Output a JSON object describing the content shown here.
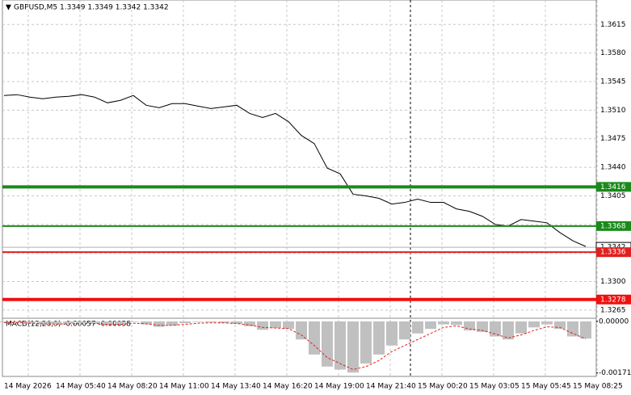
{
  "chart_data": {
    "type": "line",
    "title": "GBPUSD,M5  1.3349 1.3349 1.3342 1.3342",
    "categories": [
      "14 May 2026",
      null,
      null,
      null,
      "14 May 05:40",
      null,
      null,
      null,
      "14 May 08:20",
      null,
      null,
      null,
      "14 May 11:00",
      null,
      null,
      null,
      "14 May 13:40",
      null,
      null,
      null,
      "14 May 16:20",
      null,
      null,
      null,
      "14 May 19:00",
      null,
      null,
      null,
      "14 May 21:40",
      null,
      null,
      null,
      "15 May 00:20",
      null,
      null,
      null,
      "15 May 03:05",
      null,
      null,
      null,
      "15 May 05:45",
      null,
      null,
      null,
      "15 May 08:25",
      null
    ],
    "series": [
      {
        "name": "GBPUSD",
        "color": "#000000",
        "values": [
          1.3528,
          1.3529,
          1.3526,
          1.3524,
          1.3526,
          1.3527,
          1.3529,
          1.3526,
          1.3519,
          1.3522,
          1.3528,
          1.3516,
          1.3513,
          1.3518,
          1.3518,
          1.3515,
          1.3512,
          1.3514,
          1.3516,
          1.3506,
          1.3501,
          1.3506,
          1.3496,
          1.3479,
          1.3469,
          1.3439,
          1.3432,
          1.3407,
          1.3405,
          1.3402,
          1.3395,
          1.3397,
          1.3401,
          1.3397,
          1.3397,
          1.3389,
          1.3386,
          1.338,
          1.337,
          1.3368,
          1.3376,
          1.3374,
          1.3372,
          1.336,
          1.335,
          1.3343
        ]
      }
    ],
    "ylim": [
      1.3256,
      1.3645
    ],
    "yticks": [
      1.3615,
      {
        "value": 1.358,
        "label": "1.3580"
      },
      1.3545,
      {
        "value": 1.351,
        "label": "1.3510"
      },
      1.3475,
      {
        "value": 1.344,
        "label": "1.3440"
      },
      1.3405,
      {
        "value": 1.337,
        "label": "1.3370"
      },
      1.3335,
      {
        "value": 1.33,
        "label": "1.3300"
      },
      1.3265
    ],
    "grid": true,
    "levels": [
      {
        "value": 1.3416,
        "color": "#1a8a1a",
        "width": 4
      },
      {
        "value": 1.3368,
        "color": "#1a8a1a",
        "width": 2
      },
      {
        "value": 1.3336,
        "color": "#e02020",
        "width": 2
      },
      {
        "value": 1.3278,
        "color": "#f01010",
        "width": 4
      }
    ],
    "last_price": 1.3342,
    "macd": {
      "title": "MACD(12,26,9) -0.00057 -0.00058",
      "histogram_color": "#c0c0c0",
      "signal_color": "#e02020",
      "histogram": [
        -3e-05,
        -5e-05,
        -8e-05,
        -0.0001,
        -9e-05,
        -7e-05,
        -6e-05,
        -8e-05,
        -0.00012,
        -9e-05,
        -2e-05,
        -0.0001,
        -0.00018,
        -0.00014,
        -6e-05,
        -2e-05,
        -3e-05,
        -5e-05,
        -8e-05,
        -0.00016,
        -0.00028,
        -0.00022,
        -0.00025,
        -0.0006,
        -0.0011,
        -0.0015,
        -0.0016,
        -0.0017,
        -0.0014,
        -0.0011,
        -0.0008,
        -0.0006,
        -0.0004,
        -0.00025,
        -0.0001,
        -0.00012,
        -0.0003,
        -0.00035,
        -0.0005,
        -0.0006,
        -0.0004,
        -0.0002,
        -0.0001,
        -0.00025,
        -0.0005,
        -0.00057
      ],
      "signal": [
        -4e-05,
        -4e-05,
        -6e-05,
        -8e-05,
        -9e-05,
        -8e-05,
        -7e-05,
        -7e-05,
        -0.0001,
        -0.0001,
        -6e-05,
        -8e-05,
        -0.00013,
        -0.00013,
        -0.0001,
        -6e-05,
        -5e-05,
        -5e-05,
        -7e-05,
        -0.00012,
        -0.0002,
        -0.00022,
        -0.00024,
        -0.00045,
        -0.0008,
        -0.0012,
        -0.0014,
        -0.0016,
        -0.0015,
        -0.0013,
        -0.001,
        -0.0008,
        -0.0006,
        -0.0004,
        -0.0002,
        -0.00015,
        -0.00025,
        -0.0003,
        -0.00042,
        -0.00055,
        -0.00045,
        -0.0003,
        -0.00018,
        -0.0002,
        -0.0004,
        -0.00058
      ],
      "ylim": [
        -0.0018,
        5e-05
      ],
      "yticks": [
        {
          "value": 0,
          "label": "0.00000"
        },
        -0.00171
      ]
    }
  }
}
